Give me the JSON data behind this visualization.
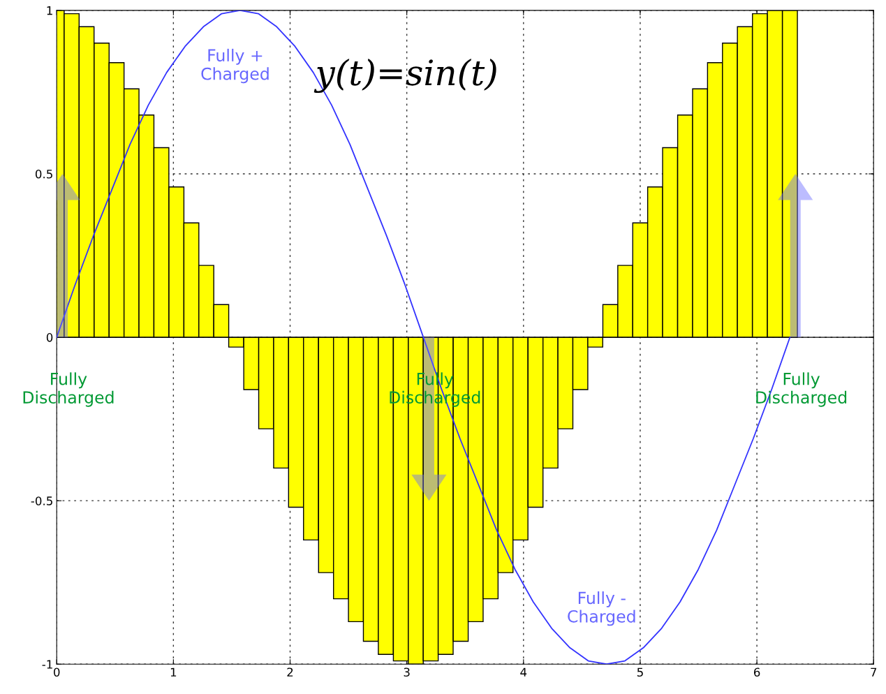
{
  "chart_data": {
    "type": "bar",
    "x": [
      0,
      0.128,
      0.256,
      0.385,
      0.513,
      0.641,
      0.769,
      0.897,
      1.026,
      1.154,
      1.282,
      1.41,
      1.538,
      1.667,
      1.795,
      1.923,
      2.051,
      2.179,
      2.308,
      2.436,
      2.564,
      2.692,
      2.82,
      2.949,
      3.077,
      3.205,
      3.333,
      3.462,
      3.59,
      3.718,
      3.846,
      3.974,
      4.103,
      4.231,
      4.359,
      4.487,
      4.615,
      4.744,
      4.872,
      5.0,
      5.128,
      5.256,
      5.385,
      5.513,
      5.641,
      5.769,
      5.897,
      6.026,
      6.154,
      6.283
    ],
    "series": [
      {
        "color": "#ffff00",
        "values": [
          1.0,
          0.99,
          0.95,
          0.9,
          0.84,
          0.76,
          0.68,
          0.58,
          0.46,
          0.35,
          0.22,
          0.1,
          -0.03,
          -0.16,
          -0.28,
          -0.4,
          -0.52,
          -0.62,
          -0.72,
          -0.8,
          -0.87,
          -0.93,
          -0.97,
          -0.99,
          -1.0,
          -0.99,
          -0.97,
          -0.93,
          -0.87,
          -0.8,
          -0.72,
          -0.62,
          -0.52,
          -0.4,
          -0.28,
          -0.16,
          -0.03,
          0.1,
          0.22,
          0.35,
          0.46,
          0.58,
          0.68,
          0.76,
          0.84,
          0.9,
          0.95,
          0.99,
          1.0,
          1.0
        ]
      },
      {
        "type": "line",
        "color": "#3333ff",
        "x": [
          0,
          0.157,
          0.314,
          0.471,
          0.628,
          0.785,
          0.942,
          1.1,
          1.257,
          1.414,
          1.571,
          1.728,
          1.885,
          2.042,
          2.199,
          2.356,
          2.513,
          2.67,
          2.827,
          2.985,
          3.142,
          3.299,
          3.456,
          3.613,
          3.77,
          3.927,
          4.084,
          4.241,
          4.398,
          4.555,
          4.712,
          4.869,
          5.027,
          5.184,
          5.341,
          5.498,
          5.655,
          5.812,
          5.969,
          6.126,
          6.283
        ],
        "values": [
          0,
          0.16,
          0.31,
          0.45,
          0.59,
          0.71,
          0.81,
          0.89,
          0.95,
          0.99,
          1.0,
          0.99,
          0.95,
          0.89,
          0.81,
          0.71,
          0.59,
          0.45,
          0.31,
          0.16,
          0,
          -0.16,
          -0.31,
          -0.45,
          -0.59,
          -0.71,
          -0.81,
          -0.89,
          -0.95,
          -0.99,
          -1.0,
          -0.99,
          -0.95,
          -0.89,
          -0.81,
          -0.71,
          -0.59,
          -0.45,
          -0.31,
          -0.16,
          0
        ]
      }
    ],
    "xlim": [
      0,
      7
    ],
    "xticks": [
      0,
      1,
      2,
      3,
      4,
      5,
      6,
      7
    ],
    "ylim": [
      -1,
      1
    ],
    "yticks": [
      -1,
      -0.5,
      0,
      0.5,
      1
    ],
    "grid": true,
    "marker": "none",
    "line_style": "solid",
    "ref_lines": [
      {
        "axis": "y",
        "value": 0,
        "color": "#000000",
        "line_style": "solid"
      }
    ],
    "annotations": [
      {
        "text": "Fully +\nCharged",
        "x": 1.57,
        "y": 1.0
      },
      {
        "text": "Fully -\nCharged",
        "x": 4.71,
        "y": -1.0
      },
      {
        "text": "Fully\nDischarged",
        "x": 0,
        "y": 0
      },
      {
        "text": "Fully\nDischarged",
        "x": 3.14,
        "y": 0
      },
      {
        "text": "Fully\nDischarged",
        "x": 6.28,
        "y": 0
      },
      "y(t)=sin(t)"
    ]
  }
}
